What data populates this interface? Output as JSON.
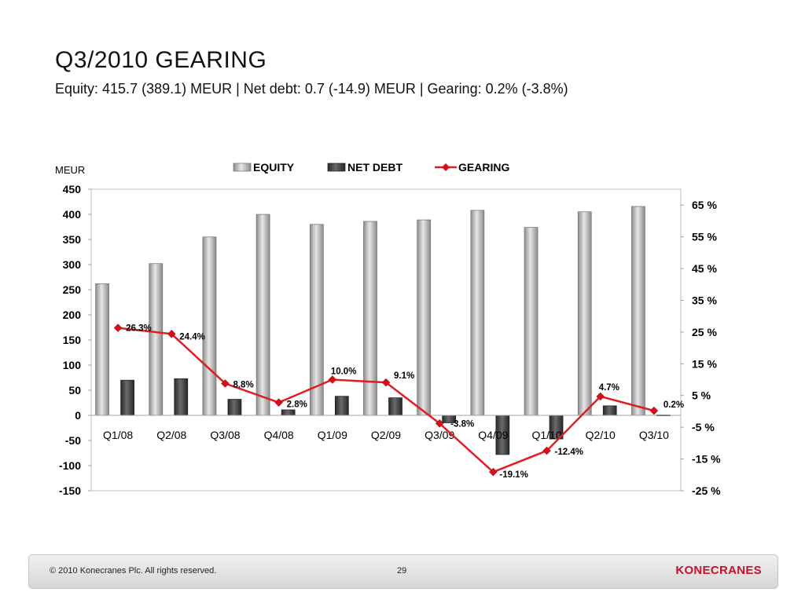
{
  "slide": {
    "title": "Q3/2010 GEARING",
    "subtitle": "Equity: 415.7 (389.1) MEUR | Net debt: 0.7 (-14.9) MEUR | Gearing: 0.2% (-3.8%)"
  },
  "footer": {
    "copyright": "© 2010 Konecranes Plc. All rights reserved.",
    "page_number": "29",
    "logo_text": "KONECRANES"
  },
  "chart_data": {
    "type": "bar",
    "categories": [
      "Q1/08",
      "Q2/08",
      "Q3/08",
      "Q4/08",
      "Q1/09",
      "Q2/09",
      "Q3/09",
      "Q4/09",
      "Q1/10",
      "Q2/10",
      "Q3/10"
    ],
    "series": [
      {
        "name": "EQUITY",
        "type": "bar",
        "axis": "left",
        "color": "#bdbdbd",
        "values": [
          262,
          302,
          355,
          400,
          380,
          386,
          389,
          408,
          374,
          405,
          415.7
        ]
      },
      {
        "name": "NET DEBT",
        "type": "bar",
        "axis": "left",
        "color": "#3a3a3a",
        "values": [
          70,
          73,
          32,
          11,
          38,
          35,
          -14.9,
          -78,
          -47,
          19,
          0.7
        ]
      },
      {
        "name": "GEARING",
        "type": "line",
        "axis": "right",
        "color": "#e31b23",
        "values": [
          26.3,
          24.4,
          8.8,
          2.8,
          10.0,
          9.1,
          -3.8,
          -19.1,
          -12.4,
          4.7,
          0.2
        ],
        "labels": [
          "26.3%",
          "24.4%",
          "8.8%",
          "2.8%",
          "10.0%",
          "9.1%",
          "-3.8%",
          "-19.1%",
          "-12.4%",
          "4.7%",
          "0.2%"
        ]
      }
    ],
    "ylabel": "MEUR",
    "ylim": [
      -150,
      450
    ],
    "yticks": [
      450,
      400,
      350,
      300,
      250,
      200,
      150,
      100,
      50,
      0,
      -50,
      -100,
      -150
    ],
    "ytick_labels": [
      "450",
      "400",
      "350",
      "300",
      "250",
      "200",
      "150",
      "100",
      "50",
      "0",
      "-50",
      "-100",
      "-150"
    ],
    "y2lim": [
      -25,
      70
    ],
    "y2ticks": [
      65,
      55,
      45,
      35,
      25,
      15,
      5,
      -5,
      -15,
      -25
    ],
    "y2tick_labels": [
      "65 %",
      "55 %",
      "45 %",
      "35 %",
      "25 %",
      "15 %",
      "5 %",
      "-5 %",
      "-15 %",
      "-25 %"
    ],
    "legend_position": "top",
    "grid": false
  }
}
